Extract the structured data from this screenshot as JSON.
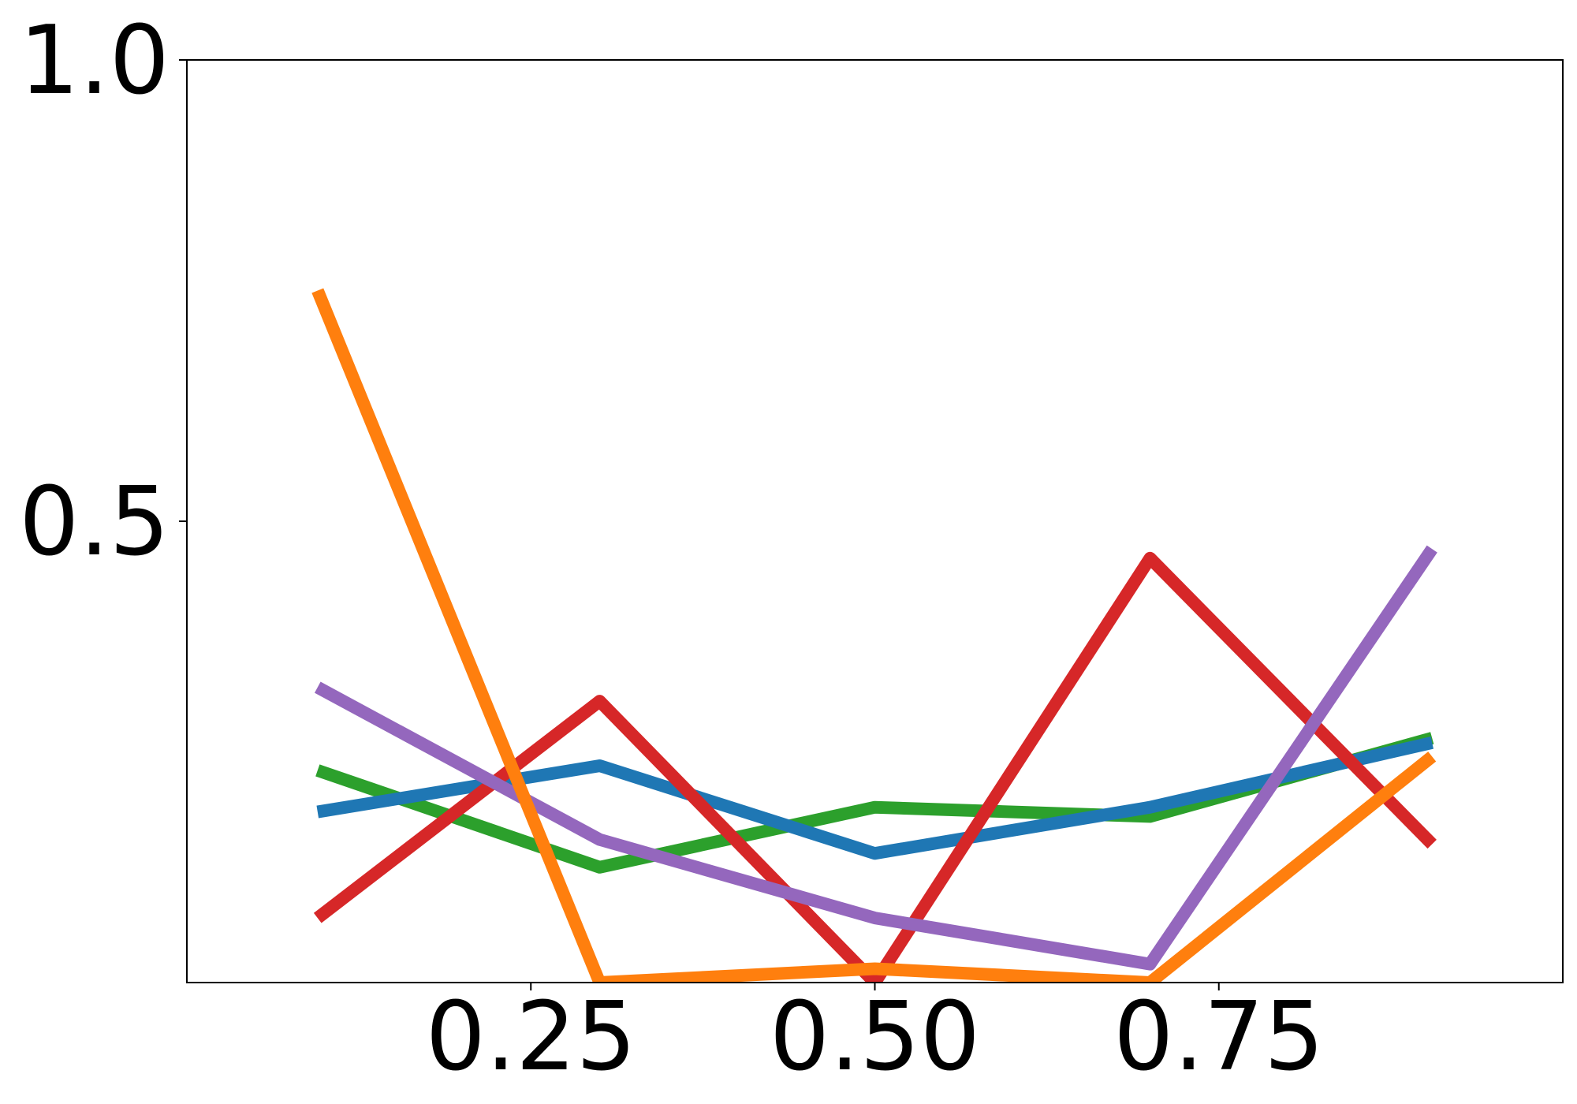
{
  "chart_data": {
    "type": "line",
    "title": "",
    "xlabel": "",
    "ylabel": "",
    "xlim": [
      0.0,
      1.0
    ],
    "ylim": [
      0.0,
      1.0
    ],
    "xticks": [
      0.25,
      0.5,
      0.75
    ],
    "xtick_labels": [
      "0.25",
      "0.50",
      "0.75"
    ],
    "yticks": [
      0.5,
      1.0
    ],
    "ytick_labels": [
      "0.5",
      "1.0"
    ],
    "grid": false,
    "x": [
      0.095,
      0.3,
      0.5,
      0.7,
      0.905
    ],
    "series": [
      {
        "color": "#2ca02c",
        "values": [
          0.23,
          0.125,
          0.19,
          0.18,
          0.265
        ]
      },
      {
        "color": "#1f77b4",
        "values": [
          0.185,
          0.235,
          0.14,
          0.19,
          0.26
        ]
      },
      {
        "color": "#d62728",
        "values": [
          0.07,
          0.305,
          0.0,
          0.46,
          0.15
        ]
      },
      {
        "color": "#9467bd",
        "values": [
          0.32,
          0.155,
          0.07,
          0.02,
          0.47
        ]
      },
      {
        "color": "#ff7f0e",
        "values": [
          0.75,
          0.0,
          0.015,
          0.0,
          0.245
        ]
      }
    ]
  }
}
